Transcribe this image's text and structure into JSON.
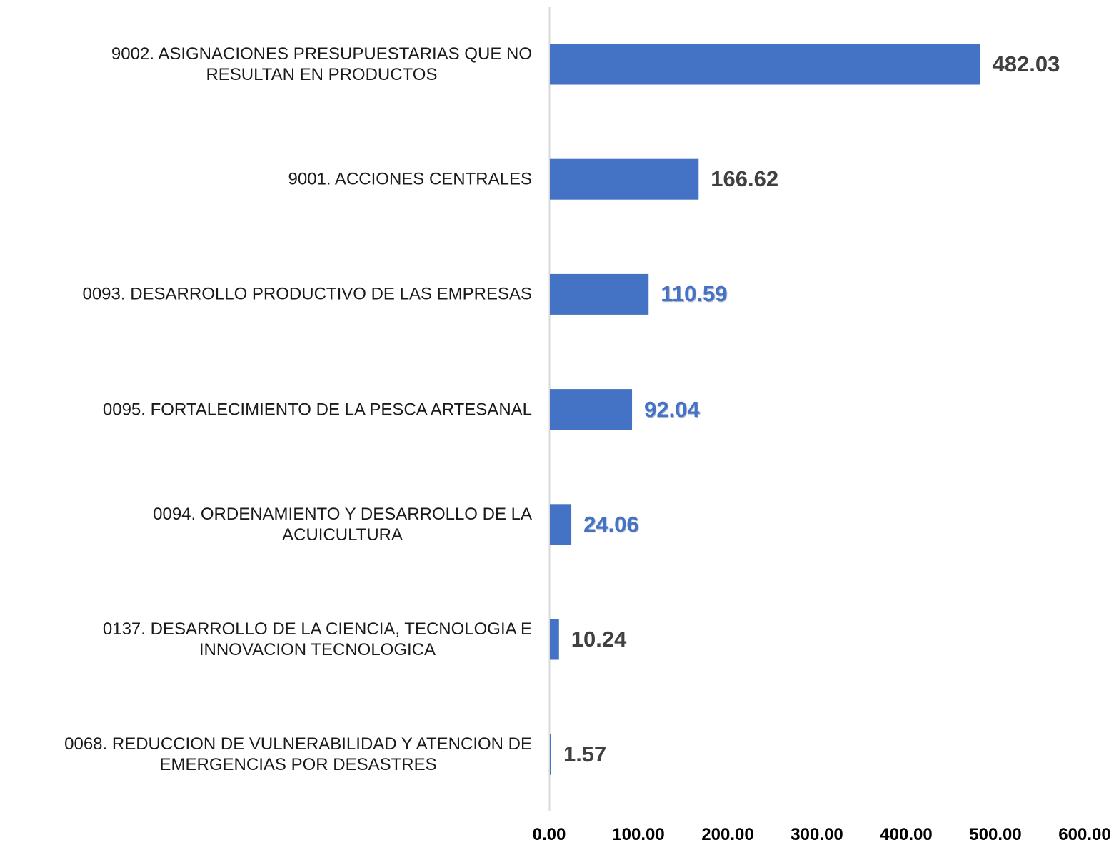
{
  "chart_data": {
    "type": "barh",
    "categories": [
      "9002. ASIGNACIONES PRESUPUESTARIAS QUE NO\nRESULTAN EN PRODUCTOS",
      "9001. ACCIONES CENTRALES",
      "0093. DESARROLLO PRODUCTIVO DE LAS EMPRESAS",
      "0095. FORTALECIMIENTO DE LA PESCA ARTESANAL",
      "0094. ORDENAMIENTO Y DESARROLLO DE LA\nACUICULTURA",
      "0137. DESARROLLO DE LA CIENCIA, TECNOLOGIA E\nINNOVACION TECNOLOGICA",
      "0068. REDUCCION DE VULNERABILIDAD Y ATENCION DE\nEMERGENCIAS POR DESASTRES"
    ],
    "values": [
      482.03,
      166.62,
      110.59,
      92.04,
      24.06,
      10.24,
      1.57
    ],
    "color": "#4472c4",
    "label_colors": [
      "#404040",
      "#404040",
      "#4472c4",
      "#4472c4",
      "#4472c4",
      "#404040",
      "#404040"
    ],
    "xlim": [
      0,
      600
    ],
    "xticks": [
      {
        "value": 0,
        "label": "0.00"
      },
      {
        "value": 100,
        "label": "100.00"
      },
      {
        "value": 200,
        "label": "200.00"
      },
      {
        "value": 300,
        "label": "300.00"
      },
      {
        "value": 400,
        "label": "400.00"
      },
      {
        "value": 500,
        "label": "500.00"
      },
      {
        "value": 600,
        "label": "600.00"
      }
    ],
    "grid": false
  }
}
